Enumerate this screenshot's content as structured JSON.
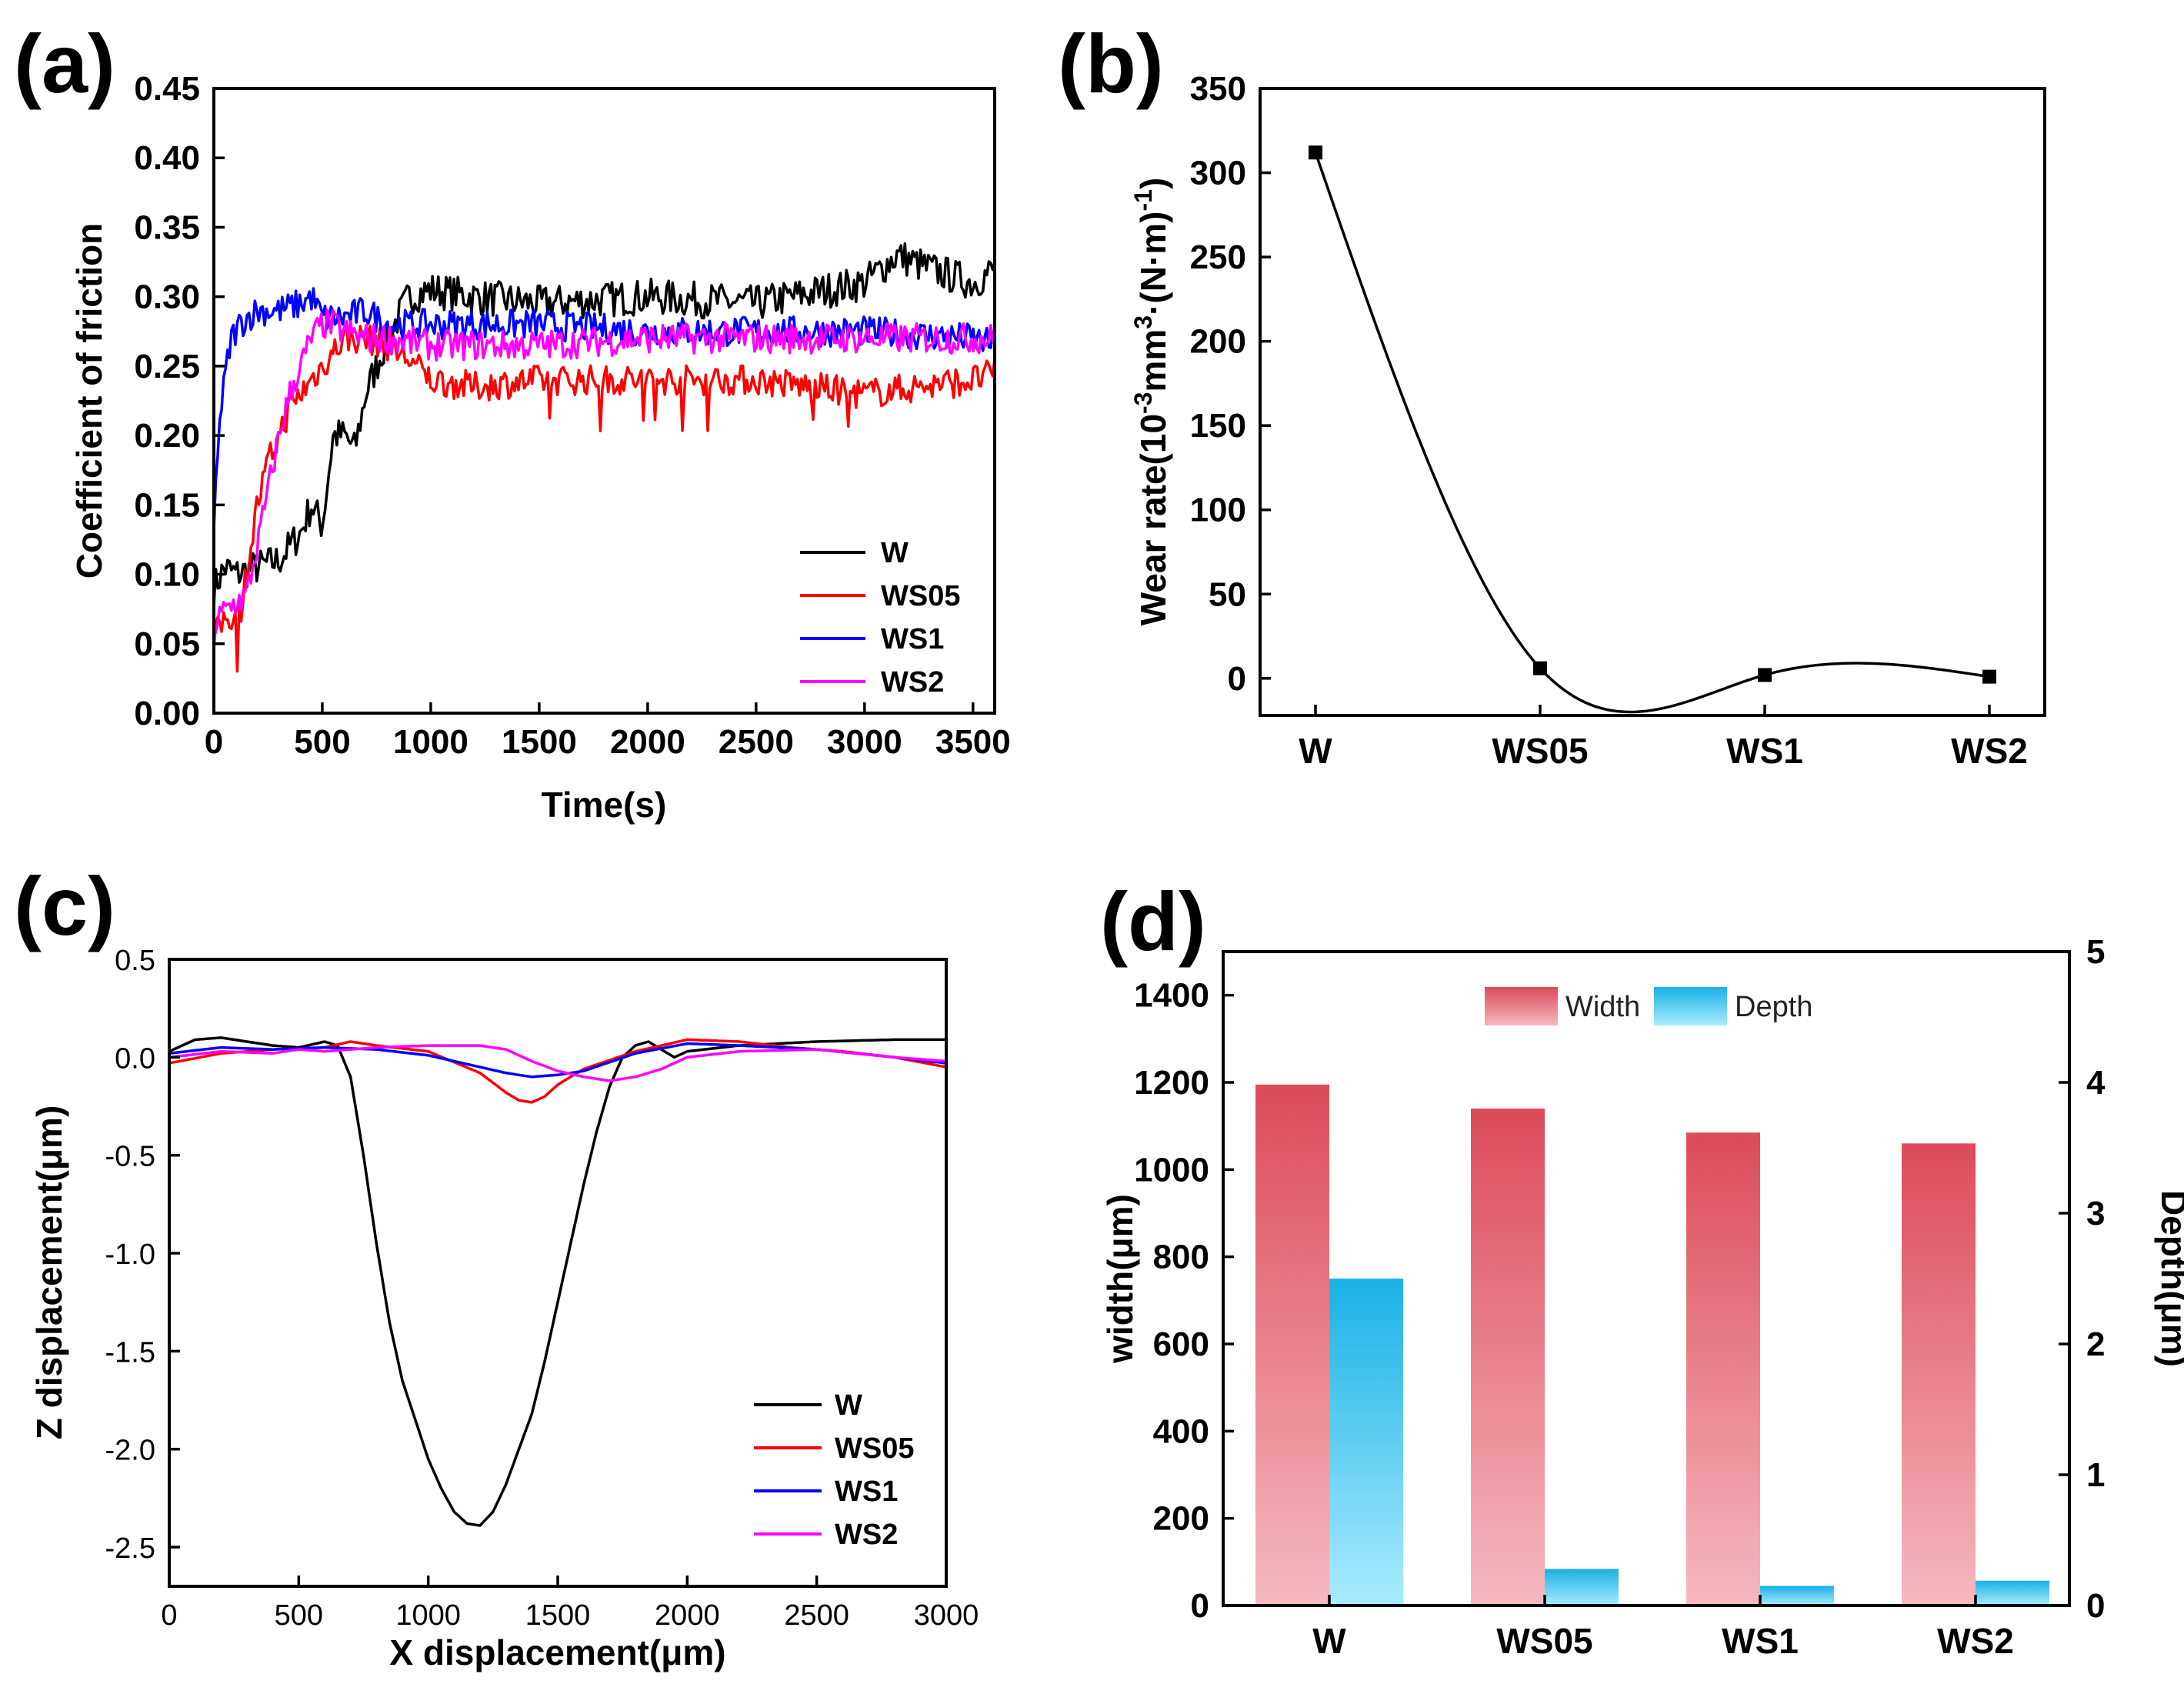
{
  "colors": {
    "W": "#000000",
    "WS05": "#ff0000",
    "WS1": "#0000ff",
    "WS2": "#ff00ff",
    "width_top": "#dc4b5a",
    "width_bottom": "#f6b8c0",
    "depth_top": "#1ab1e6",
    "depth_bottom": "#a9ecfd"
  },
  "chart_data": [
    {
      "panel": "(a)",
      "type": "line",
      "xlabel": "Time(s)",
      "ylabel": "Coefficient of friction",
      "xlim": [
        0,
        3600
      ],
      "ylim": [
        0,
        0.45
      ],
      "xticks": [
        "0",
        "500",
        "1000",
        "1500",
        "2000",
        "2500",
        "3000",
        "3500"
      ],
      "yticks": [
        "0.00",
        "0.05",
        "0.10",
        "0.15",
        "0.20",
        "0.25",
        "0.30",
        "0.35",
        "0.40",
        "0.45"
      ],
      "legend": [
        "W",
        "WS05",
        "WS1",
        "WS2"
      ],
      "series": [
        {
          "name": "W",
          "x": [
            0,
            50,
            100,
            200,
            300,
            350,
            400,
            450,
            500,
            550,
            600,
            650,
            700,
            750,
            800,
            900,
            1000,
            1200,
            1500,
            2000,
            2500,
            3000,
            3150,
            3300,
            3500,
            3600
          ],
          "y": [
            0.09,
            0.105,
            0.1,
            0.105,
            0.11,
            0.12,
            0.13,
            0.15,
            0.135,
            0.2,
            0.2,
            0.19,
            0.23,
            0.25,
            0.27,
            0.3,
            0.305,
            0.3,
            0.295,
            0.3,
            0.295,
            0.31,
            0.33,
            0.32,
            0.31,
            0.32
          ]
        },
        {
          "name": "WS05",
          "x": [
            0,
            30,
            60,
            120,
            150,
            200,
            250,
            300,
            350,
            400,
            450,
            500,
            550,
            600,
            700,
            800,
            900,
            1000,
            1200,
            1500,
            2000,
            2500,
            3000,
            3500,
            3600
          ],
          "y": [
            0.05,
            0.065,
            0.07,
            0.07,
            0.1,
            0.15,
            0.18,
            0.2,
            0.22,
            0.23,
            0.24,
            0.25,
            0.26,
            0.27,
            0.27,
            0.265,
            0.255,
            0.24,
            0.235,
            0.24,
            0.24,
            0.24,
            0.23,
            0.24,
            0.245
          ]
        },
        {
          "name": "WS1",
          "x": [
            0,
            20,
            50,
            80,
            120,
            150,
            200,
            300,
            400,
            450,
            500,
            600,
            700,
            800,
            1000,
            1500,
            2000,
            2500,
            3000,
            3500,
            3600
          ],
          "y": [
            0.13,
            0.2,
            0.24,
            0.27,
            0.28,
            0.285,
            0.29,
            0.29,
            0.295,
            0.3,
            0.285,
            0.285,
            0.29,
            0.28,
            0.28,
            0.28,
            0.275,
            0.275,
            0.275,
            0.27,
            0.265
          ]
        },
        {
          "name": "WS2",
          "x": [
            0,
            30,
            60,
            150,
            200,
            250,
            300,
            350,
            400,
            450,
            500,
            550,
            600,
            700,
            800,
            1000,
            1500,
            2000,
            2500,
            3000,
            3500,
            3600
          ],
          "y": [
            0.06,
            0.07,
            0.075,
            0.085,
            0.12,
            0.16,
            0.2,
            0.23,
            0.25,
            0.27,
            0.28,
            0.28,
            0.275,
            0.27,
            0.27,
            0.265,
            0.265,
            0.27,
            0.27,
            0.27,
            0.27,
            0.27
          ]
        }
      ]
    },
    {
      "panel": "(b)",
      "type": "scatter",
      "xlabel": "",
      "ylabel": "Wear rate(10⁻³mm³·(N·m)⁻¹)",
      "categories": [
        "W",
        "WS05",
        "WS1",
        "WS2"
      ],
      "values": [
        312,
        6,
        2,
        1
      ],
      "ylim": [
        -22,
        350
      ],
      "yticks": [
        "0",
        "50",
        "100",
        "150",
        "200",
        "250",
        "300",
        "350"
      ],
      "curve": "smooth spline through points"
    },
    {
      "panel": "(c)",
      "type": "line",
      "xlabel": "X displacement(μm)",
      "ylabel": "Z displacement(μm)",
      "xlim": [
        0,
        3000
      ],
      "ylim": [
        -2.7,
        0.5
      ],
      "xticks": [
        "0",
        "500",
        "1000",
        "1500",
        "2000",
        "2500",
        "3000"
      ],
      "yticks": [
        "0.5",
        "0.0",
        "-0.5",
        "-1.0",
        "-1.5",
        "-2.0",
        "-2.5"
      ],
      "legend": [
        "W",
        "WS05",
        "WS1",
        "WS2"
      ],
      "series": [
        {
          "name": "W",
          "x": [
            0,
            100,
            200,
            300,
            400,
            500,
            600,
            650,
            700,
            750,
            800,
            850,
            900,
            950,
            1000,
            1050,
            1100,
            1150,
            1200,
            1250,
            1300,
            1350,
            1400,
            1450,
            1500,
            1550,
            1600,
            1650,
            1700,
            1750,
            1800,
            1850,
            1900,
            1950,
            2000,
            2200,
            2500,
            2800,
            3000
          ],
          "y": [
            0.03,
            0.09,
            0.1,
            0.08,
            0.06,
            0.05,
            0.08,
            0.06,
            -0.1,
            -0.5,
            -0.95,
            -1.35,
            -1.65,
            -1.85,
            -2.05,
            -2.2,
            -2.32,
            -2.38,
            -2.39,
            -2.32,
            -2.18,
            -2.0,
            -1.82,
            -1.55,
            -1.25,
            -0.95,
            -0.65,
            -0.38,
            -0.15,
            0.0,
            0.06,
            0.08,
            0.04,
            0.0,
            0.03,
            0.06,
            0.08,
            0.09,
            0.09
          ]
        },
        {
          "name": "WS05",
          "x": [
            0,
            200,
            400,
            600,
            700,
            800,
            1000,
            1200,
            1300,
            1350,
            1400,
            1450,
            1500,
            1600,
            1800,
            2000,
            2200,
            2400,
            2600,
            2800,
            3000
          ],
          "y": [
            -0.03,
            0.02,
            0.04,
            0.05,
            0.08,
            0.06,
            0.03,
            -0.08,
            -0.18,
            -0.22,
            -0.23,
            -0.2,
            -0.14,
            -0.06,
            0.03,
            0.09,
            0.08,
            0.05,
            0.03,
            0.0,
            -0.05
          ]
        },
        {
          "name": "WS1",
          "x": [
            0,
            200,
            400,
            600,
            800,
            1000,
            1200,
            1300,
            1400,
            1500,
            1600,
            1800,
            2000,
            2200,
            2500,
            2800,
            3000
          ],
          "y": [
            0.02,
            0.05,
            0.04,
            0.05,
            0.04,
            0.01,
            -0.05,
            -0.08,
            -0.1,
            -0.09,
            -0.07,
            0.02,
            0.07,
            0.06,
            0.04,
            0.0,
            -0.03
          ]
        },
        {
          "name": "WS2",
          "x": [
            0,
            200,
            400,
            500,
            600,
            800,
            1000,
            1200,
            1300,
            1400,
            1500,
            1600,
            1700,
            1800,
            1900,
            2000,
            2200,
            2500,
            2800,
            3000
          ],
          "y": [
            0.0,
            0.03,
            0.02,
            0.04,
            0.03,
            0.05,
            0.06,
            0.06,
            0.04,
            -0.02,
            -0.07,
            -0.1,
            -0.12,
            -0.1,
            -0.06,
            0.0,
            0.03,
            0.04,
            0.0,
            -0.02
          ]
        }
      ]
    },
    {
      "panel": "(d)",
      "type": "bar",
      "categories": [
        "W",
        "WS05",
        "WS1",
        "WS2"
      ],
      "ylabel": "width(μm)",
      "y2label": "Depth(μm)",
      "ylim": [
        0,
        1500
      ],
      "y2lim": [
        0,
        5
      ],
      "yticks": [
        "0",
        "200",
        "400",
        "600",
        "800",
        "1000",
        "1200",
        "1400"
      ],
      "y2ticks": [
        "0",
        "1",
        "2",
        "3",
        "4",
        "5"
      ],
      "legend": [
        "Width",
        "Depth"
      ],
      "series": [
        {
          "name": "Width",
          "axis": "left",
          "values": [
            1195,
            1140,
            1085,
            1060
          ]
        },
        {
          "name": "Depth",
          "axis": "right",
          "values": [
            2.5,
            0.28,
            0.15,
            0.19
          ]
        }
      ]
    }
  ]
}
